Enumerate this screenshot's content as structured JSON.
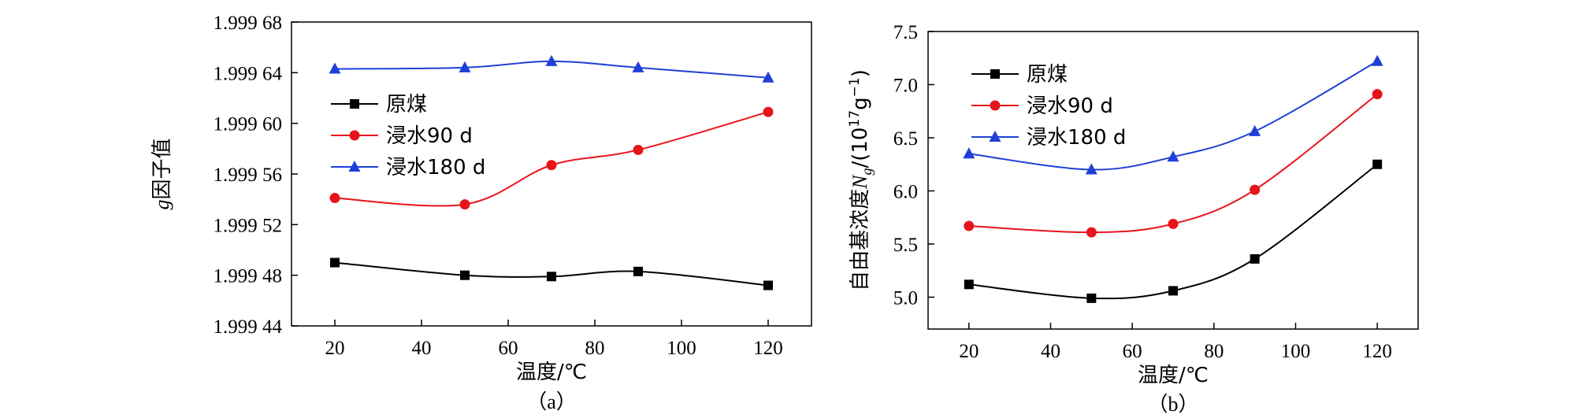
{
  "panels": [
    {
      "xlabel": "温度/℃",
      "ylabel_prefix": "g",
      "ylabel_suffix": "因子值",
      "panel_label": "（a）"
    },
    {
      "xlabel": "温度/℃",
      "ylabel_prefix": "自由基浓度",
      "ylabel_var": "N",
      "ylabel_sub": "g",
      "ylabel_unit_open": "/(10",
      "ylabel_unit_exp1": "17",
      "ylabel_unit_mid": "g",
      "ylabel_unit_exp2": "−1",
      "ylabel_unit_close": ")",
      "panel_label": "（b）"
    }
  ],
  "chart_data": [
    {
      "type": "line",
      "title": "",
      "xlabel": "温度/℃",
      "ylabel": "g因子值",
      "x": [
        20,
        50,
        70,
        90,
        120
      ],
      "xlim": [
        10,
        130
      ],
      "ylim": [
        1.99944,
        1.99968
      ],
      "xticks": [
        "20",
        "40",
        "60",
        "80",
        "100",
        "120"
      ],
      "yticks": [
        "1.999 44",
        "1.999 48",
        "1.999 52",
        "1.999 56",
        "1.999 60",
        "1.999 64",
        "1.999 68"
      ],
      "legend_position": "center-left",
      "series": [
        {
          "name": "原煤",
          "values": [
            1.99949,
            1.99948,
            1.999479,
            1.999483,
            1.999472
          ],
          "color": "#000000",
          "marker": "square"
        },
        {
          "name": "浸水90 d",
          "values": [
            1.999541,
            1.999536,
            1.999567,
            1.999579,
            1.999609
          ],
          "color": "#e8141b",
          "marker": "circle"
        },
        {
          "name": "浸水180 d",
          "values": [
            1.999643,
            1.999644,
            1.999649,
            1.999644,
            1.999636
          ],
          "color": "#1f3fd8",
          "marker": "triangle"
        }
      ]
    },
    {
      "type": "line",
      "title": "",
      "xlabel": "温度/℃",
      "ylabel": "自由基浓度Ng/(10^17 g^-1)",
      "x": [
        20,
        50,
        70,
        90,
        120
      ],
      "xlim": [
        10,
        130
      ],
      "ylim": [
        4.7,
        7.5
      ],
      "xticks": [
        "20",
        "40",
        "60",
        "80",
        "100",
        "120"
      ],
      "yticks": [
        "5.0",
        "5.5",
        "6.0",
        "6.5",
        "7.0",
        "7.5"
      ],
      "legend_position": "top-left",
      "series": [
        {
          "name": "原煤",
          "values": [
            5.12,
            4.99,
            5.06,
            5.36,
            6.25
          ],
          "color": "#000000",
          "marker": "square"
        },
        {
          "name": "浸水90 d",
          "values": [
            5.67,
            5.61,
            5.69,
            6.01,
            6.91
          ],
          "color": "#e8141b",
          "marker": "circle"
        },
        {
          "name": "浸水180 d",
          "values": [
            6.35,
            6.2,
            6.32,
            6.56,
            7.22
          ],
          "color": "#1f3fd8",
          "marker": "triangle"
        }
      ]
    }
  ]
}
